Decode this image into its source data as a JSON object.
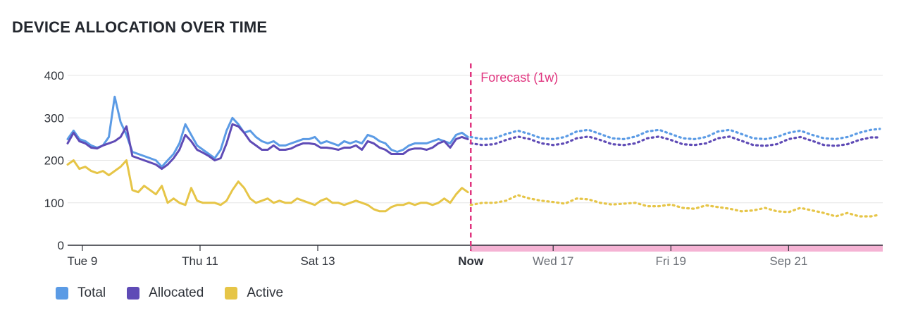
{
  "title": "DEVICE ALLOCATION OVER TIME",
  "forecast_label": "Forecast (1w)",
  "colors": {
    "total": "#5b9be5",
    "allocated": "#5f4bb6",
    "active": "#e6c547",
    "forecast": "#e0357f",
    "forecast_band": "#f5b3d4",
    "grid": "#e6e6e6",
    "axis": "#2b2f36"
  },
  "chart_data": {
    "type": "line",
    "y_ticks": [
      0,
      100,
      200,
      300,
      400
    ],
    "ylim": [
      0,
      420
    ],
    "x_ticks": [
      {
        "label": "Tue 9",
        "t": 0.5,
        "kind": "past"
      },
      {
        "label": "Thu 11",
        "t": 2.5,
        "kind": "past"
      },
      {
        "label": "Sat 13",
        "t": 4.5,
        "kind": "past"
      },
      {
        "label": "Now",
        "t": 7.1,
        "kind": "now"
      },
      {
        "label": "Wed 17",
        "t": 8.5,
        "kind": "future"
      },
      {
        "label": "Fri 19",
        "t": 10.5,
        "kind": "future"
      },
      {
        "label": "Sep 21",
        "t": 12.5,
        "kind": "future"
      }
    ],
    "x_range_days": [
      0.25,
      14.1
    ],
    "now_t": 7.1,
    "series": [
      {
        "name": "Total",
        "key": "total",
        "x": [
          0.25,
          0.35,
          0.45,
          0.55,
          0.65,
          0.75,
          0.85,
          0.95,
          1.05,
          1.15,
          1.25,
          1.35,
          1.45,
          1.55,
          1.65,
          1.75,
          1.85,
          1.95,
          2.05,
          2.15,
          2.25,
          2.35,
          2.45,
          2.55,
          2.65,
          2.75,
          2.85,
          2.95,
          3.05,
          3.15,
          3.25,
          3.35,
          3.45,
          3.55,
          3.65,
          3.75,
          3.85,
          3.95,
          4.05,
          4.15,
          4.25,
          4.35,
          4.45,
          4.55,
          4.65,
          4.75,
          4.85,
          4.95,
          5.05,
          5.15,
          5.25,
          5.35,
          5.45,
          5.55,
          5.65,
          5.75,
          5.85,
          5.95,
          6.05,
          6.15,
          6.25,
          6.35,
          6.45,
          6.55,
          6.65,
          6.75,
          6.85,
          6.95,
          7.05
        ],
        "y": [
          250,
          270,
          250,
          245,
          235,
          230,
          235,
          255,
          350,
          290,
          260,
          220,
          215,
          210,
          205,
          200,
          185,
          200,
          215,
          240,
          285,
          260,
          235,
          225,
          215,
          205,
          225,
          270,
          300,
          285,
          265,
          270,
          255,
          245,
          240,
          245,
          235,
          235,
          240,
          245,
          250,
          250,
          255,
          240,
          245,
          240,
          235,
          245,
          240,
          245,
          240,
          260,
          255,
          245,
          240,
          225,
          220,
          225,
          235,
          240,
          240,
          240,
          245,
          250,
          245,
          240,
          260,
          265,
          255
        ]
      },
      {
        "name": "Allocated",
        "key": "allocated",
        "x": [
          0.25,
          0.35,
          0.45,
          0.55,
          0.65,
          0.75,
          0.85,
          0.95,
          1.05,
          1.15,
          1.25,
          1.35,
          1.45,
          1.55,
          1.65,
          1.75,
          1.85,
          1.95,
          2.05,
          2.15,
          2.25,
          2.35,
          2.45,
          2.55,
          2.65,
          2.75,
          2.85,
          2.95,
          3.05,
          3.15,
          3.25,
          3.35,
          3.45,
          3.55,
          3.65,
          3.75,
          3.85,
          3.95,
          4.05,
          4.15,
          4.25,
          4.35,
          4.45,
          4.55,
          4.65,
          4.75,
          4.85,
          4.95,
          5.05,
          5.15,
          5.25,
          5.35,
          5.45,
          5.55,
          5.65,
          5.75,
          5.85,
          5.95,
          6.05,
          6.15,
          6.25,
          6.35,
          6.45,
          6.55,
          6.65,
          6.75,
          6.85,
          6.95,
          7.05
        ],
        "y": [
          240,
          265,
          245,
          240,
          230,
          228,
          235,
          240,
          245,
          255,
          280,
          210,
          205,
          200,
          195,
          190,
          180,
          190,
          205,
          225,
          260,
          245,
          225,
          218,
          210,
          200,
          205,
          240,
          285,
          280,
          265,
          245,
          235,
          225,
          225,
          235,
          225,
          225,
          228,
          235,
          240,
          240,
          238,
          230,
          230,
          228,
          225,
          230,
          230,
          235,
          225,
          245,
          240,
          230,
          225,
          215,
          215,
          215,
          225,
          228,
          228,
          225,
          230,
          240,
          245,
          230,
          250,
          255,
          250
        ]
      },
      {
        "name": "Active",
        "key": "active",
        "x": [
          0.25,
          0.35,
          0.45,
          0.55,
          0.65,
          0.75,
          0.85,
          0.95,
          1.05,
          1.15,
          1.25,
          1.35,
          1.45,
          1.55,
          1.65,
          1.75,
          1.85,
          1.95,
          2.05,
          2.15,
          2.25,
          2.35,
          2.45,
          2.55,
          2.65,
          2.75,
          2.85,
          2.95,
          3.05,
          3.15,
          3.25,
          3.35,
          3.45,
          3.55,
          3.65,
          3.75,
          3.85,
          3.95,
          4.05,
          4.15,
          4.25,
          4.35,
          4.45,
          4.55,
          4.65,
          4.75,
          4.85,
          4.95,
          5.05,
          5.15,
          5.25,
          5.35,
          5.45,
          5.55,
          5.65,
          5.75,
          5.85,
          5.95,
          6.05,
          6.15,
          6.25,
          6.35,
          6.45,
          6.55,
          6.65,
          6.75,
          6.85,
          6.95,
          7.05
        ],
        "y": [
          190,
          200,
          180,
          185,
          175,
          170,
          175,
          165,
          175,
          185,
          200,
          130,
          125,
          140,
          130,
          120,
          140,
          100,
          110,
          100,
          95,
          135,
          105,
          100,
          100,
          100,
          95,
          105,
          130,
          150,
          135,
          110,
          100,
          105,
          110,
          100,
          105,
          100,
          100,
          110,
          105,
          100,
          95,
          105,
          110,
          100,
          100,
          95,
          100,
          105,
          100,
          95,
          85,
          80,
          80,
          90,
          95,
          95,
          100,
          95,
          100,
          100,
          95,
          100,
          110,
          100,
          120,
          135,
          125
        ]
      },
      {
        "name": "Total forecast",
        "key": "total",
        "forecast": true,
        "x": [
          7.1,
          7.3,
          7.5,
          7.7,
          7.9,
          8.1,
          8.3,
          8.5,
          8.7,
          8.9,
          9.1,
          9.3,
          9.5,
          9.7,
          9.9,
          10.1,
          10.3,
          10.5,
          10.7,
          10.9,
          11.1,
          11.3,
          11.5,
          11.7,
          11.9,
          12.1,
          12.3,
          12.5,
          12.7,
          12.9,
          13.1,
          13.3,
          13.5,
          13.7,
          13.9,
          14.05
        ],
        "y": [
          255,
          250,
          252,
          262,
          270,
          262,
          252,
          250,
          255,
          268,
          272,
          262,
          252,
          250,
          256,
          268,
          272,
          262,
          252,
          250,
          255,
          268,
          272,
          262,
          252,
          250,
          255,
          265,
          270,
          260,
          252,
          250,
          255,
          265,
          272,
          274
        ]
      },
      {
        "name": "Allocated forecast",
        "key": "allocated",
        "forecast": true,
        "x": [
          7.1,
          7.3,
          7.5,
          7.7,
          7.9,
          8.1,
          8.3,
          8.5,
          8.7,
          8.9,
          9.1,
          9.3,
          9.5,
          9.7,
          9.9,
          10.1,
          10.3,
          10.5,
          10.7,
          10.9,
          11.1,
          11.3,
          11.5,
          11.7,
          11.9,
          12.1,
          12.3,
          12.5,
          12.7,
          12.9,
          13.1,
          13.3,
          13.5,
          13.7,
          13.9,
          14.05
        ],
        "y": [
          240,
          236,
          238,
          248,
          256,
          250,
          240,
          236,
          240,
          252,
          256,
          248,
          238,
          236,
          240,
          252,
          256,
          248,
          238,
          236,
          240,
          252,
          256,
          246,
          236,
          234,
          238,
          250,
          255,
          246,
          236,
          234,
          238,
          248,
          254,
          254
        ]
      },
      {
        "name": "Active forecast",
        "key": "active",
        "forecast": true,
        "x": [
          7.1,
          7.3,
          7.5,
          7.7,
          7.9,
          8.1,
          8.3,
          8.5,
          8.7,
          8.9,
          9.1,
          9.3,
          9.5,
          9.7,
          9.9,
          10.1,
          10.3,
          10.5,
          10.7,
          10.9,
          11.1,
          11.3,
          11.5,
          11.7,
          11.9,
          12.1,
          12.3,
          12.5,
          12.7,
          12.9,
          13.1,
          13.3,
          13.5,
          13.7,
          13.9,
          14.05
        ],
        "y": [
          95,
          100,
          100,
          105,
          118,
          110,
          105,
          102,
          98,
          110,
          108,
          100,
          96,
          98,
          100,
          92,
          92,
          96,
          88,
          86,
          94,
          90,
          86,
          80,
          82,
          88,
          80,
          78,
          88,
          82,
          76,
          68,
          76,
          68,
          68,
          72
        ]
      }
    ],
    "legend": [
      {
        "name": "Total",
        "key": "total"
      },
      {
        "name": "Allocated",
        "key": "allocated"
      },
      {
        "name": "Active",
        "key": "active"
      }
    ],
    "legend_position": "bottom-left",
    "grid": true
  }
}
